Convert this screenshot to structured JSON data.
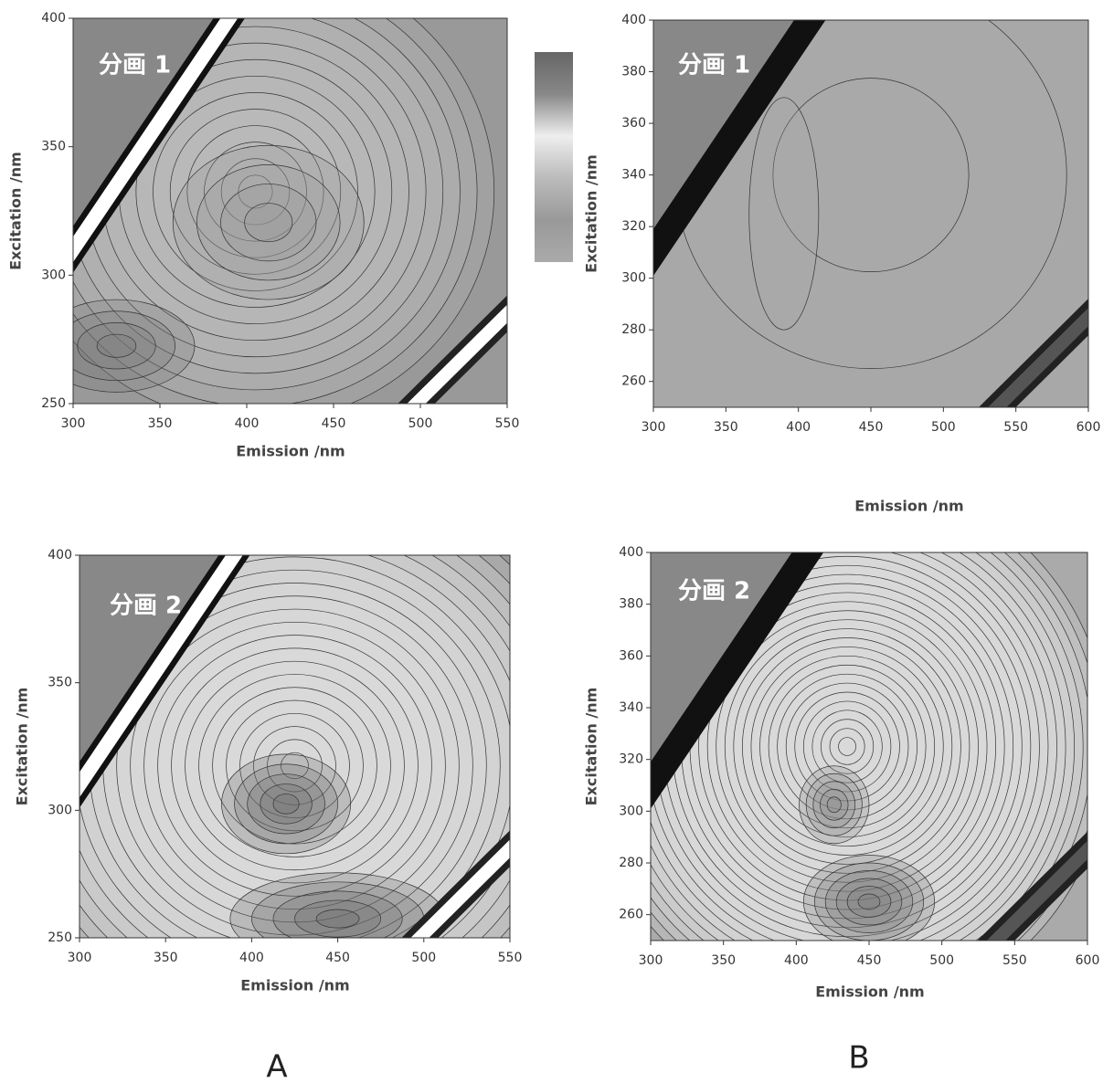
{
  "chart_data": [
    {
      "type": "contour",
      "x_label": "Emission /nm",
      "y_label": "Excitation /nm",
      "annotation": "分画 1",
      "xlim": [
        300,
        550
      ],
      "ylim": [
        250,
        400
      ],
      "xticks": [
        300,
        350,
        400,
        450,
        500,
        550
      ],
      "yticks": [
        250,
        300,
        350,
        400
      ],
      "colorbar": true
    },
    {
      "type": "contour",
      "x_label": "Emission /nm",
      "y_label": "Excitation /nm",
      "annotation": "分画 1",
      "xlim": [
        300,
        600
      ],
      "ylim": [
        250,
        400
      ],
      "xticks": [
        300,
        350,
        400,
        450,
        500,
        550,
        600
      ],
      "yticks": [
        260,
        280,
        300,
        320,
        340,
        360,
        380,
        400
      ],
      "colorbar": false
    },
    {
      "type": "contour",
      "x_label": "Emission /nm",
      "y_label": "Excitation /nm",
      "annotation": "分画 2",
      "xlim": [
        300,
        550
      ],
      "ylim": [
        250,
        400
      ],
      "xticks": [
        300,
        350,
        400,
        450,
        500,
        550
      ],
      "yticks": [
        250,
        300,
        350,
        400
      ],
      "colorbar": false
    },
    {
      "type": "contour",
      "x_label": "Emission /nm",
      "y_label": "Excitation /nm",
      "annotation": "分画 2",
      "xlim": [
        300,
        600
      ],
      "ylim": [
        250,
        400
      ],
      "xticks": [
        300,
        350,
        400,
        450,
        500,
        550,
        600
      ],
      "yticks": [
        260,
        280,
        300,
        320,
        340,
        360,
        380,
        400
      ],
      "colorbar": false
    }
  ],
  "panel_labels": [
    "A",
    "B"
  ]
}
